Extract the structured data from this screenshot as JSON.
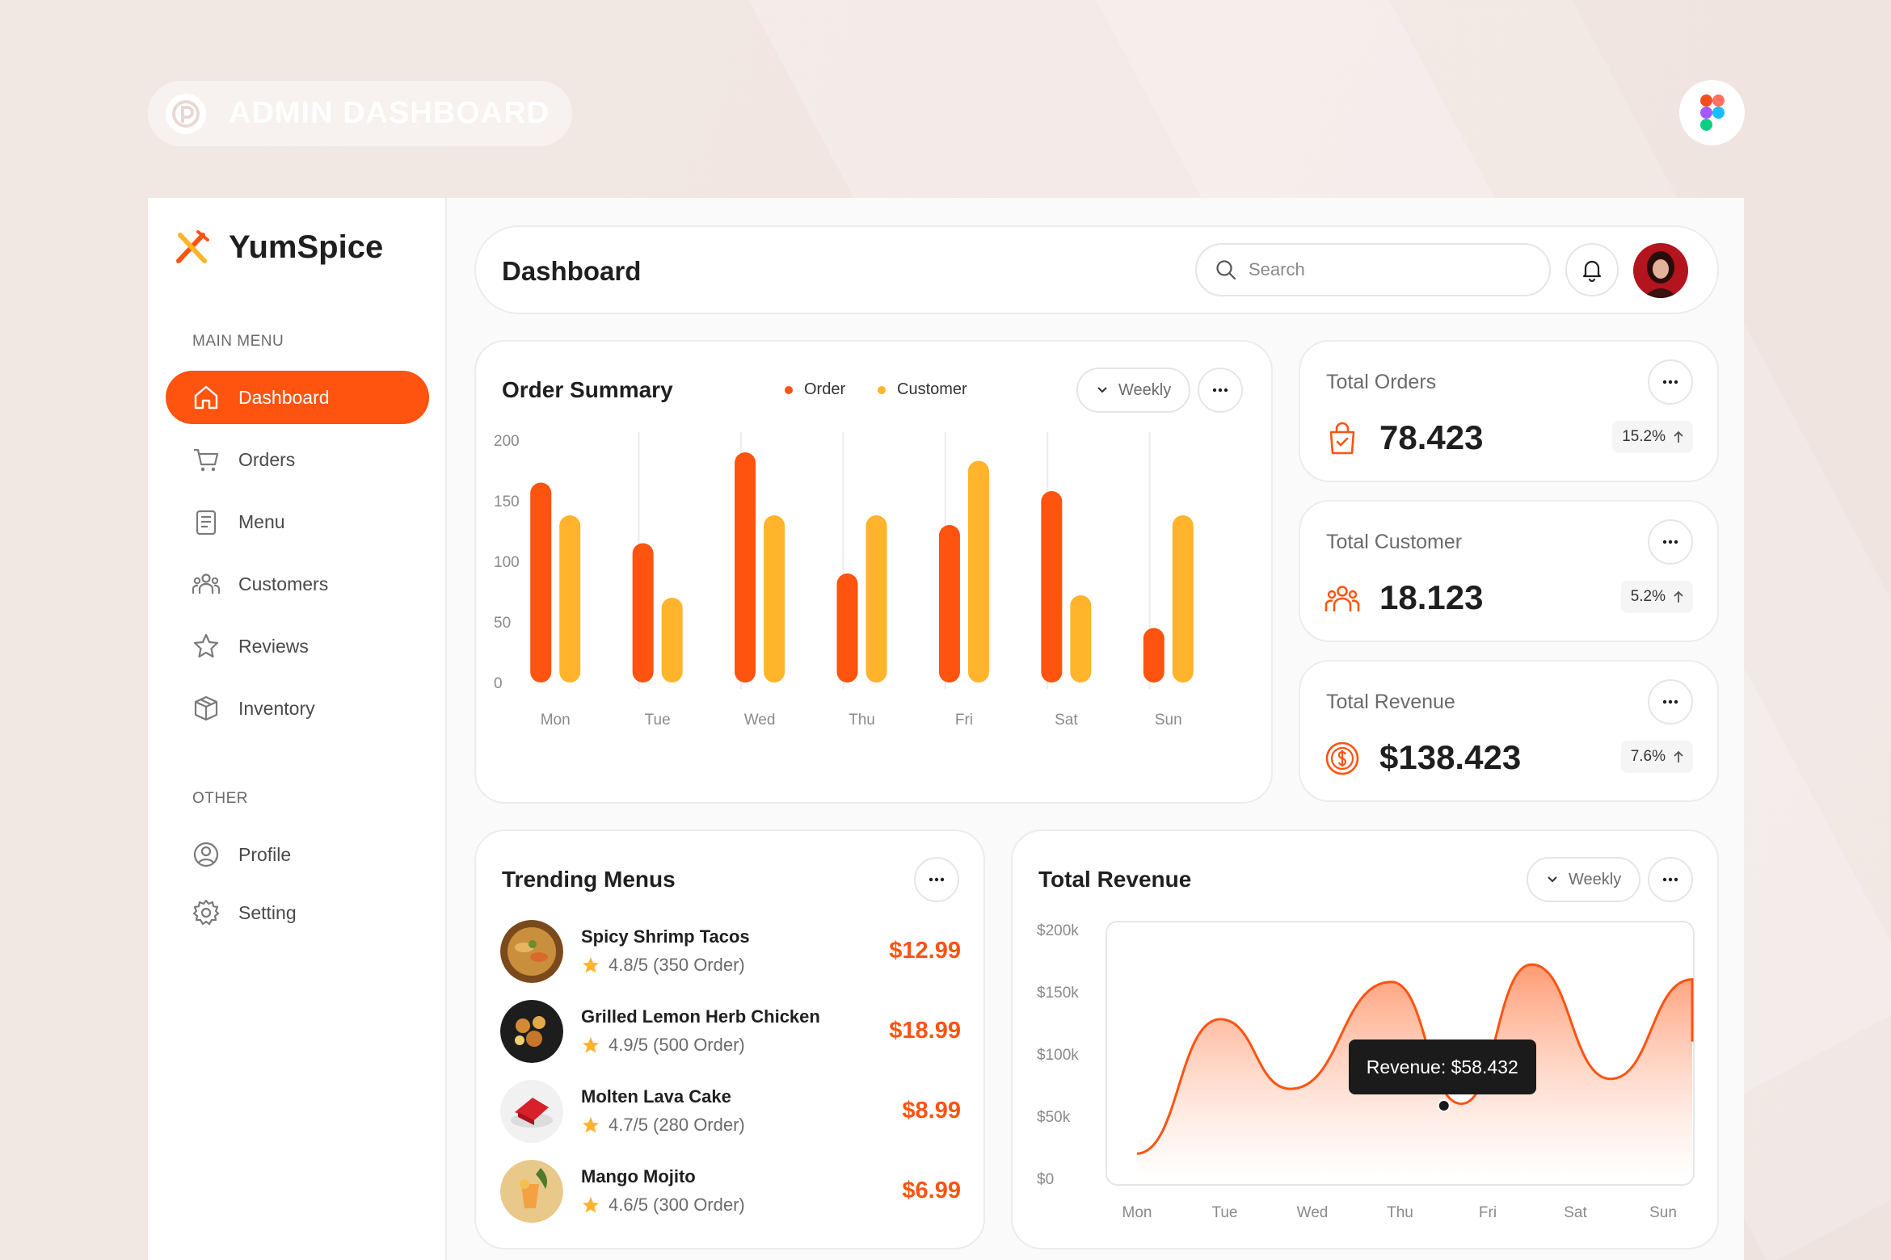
{
  "banner": {
    "title": "ADMIN DASHBOARD"
  },
  "brand": {
    "name": "YumSpice"
  },
  "sidebar": {
    "main_label": "MAIN MENU",
    "main_items": [
      {
        "label": "Dashboard",
        "icon": "home-icon",
        "active": true
      },
      {
        "label": "Orders",
        "icon": "cart-icon"
      },
      {
        "label": "Menu",
        "icon": "menu-board-icon"
      },
      {
        "label": "Customers",
        "icon": "customers-icon"
      },
      {
        "label": "Reviews",
        "icon": "star-icon"
      },
      {
        "label": "Inventory",
        "icon": "box-icon"
      }
    ],
    "other_label": "OTHER",
    "other_items": [
      {
        "label": "Profile",
        "icon": "profile-icon"
      },
      {
        "label": "Setting",
        "icon": "gear-icon"
      }
    ]
  },
  "header": {
    "title": "Dashboard",
    "search_placeholder": "Search"
  },
  "order_summary": {
    "title": "Order Summary",
    "legend": [
      "Order",
      "Customer"
    ],
    "period": "Weekly"
  },
  "stats": [
    {
      "title": "Total Orders",
      "value": "78.423",
      "change": "15.2%",
      "icon": "shopping-bag-icon"
    },
    {
      "title": "Total Customer",
      "value": "18.123",
      "change": "5.2%",
      "icon": "customers-icon"
    },
    {
      "title": "Total Revenue",
      "value": "$138.423",
      "change": "7.6%",
      "icon": "dollar-coin-icon"
    }
  ],
  "trending": {
    "title": "Trending Menus",
    "items": [
      {
        "name": "Spicy Shrimp Tacos",
        "rating": "4.8/5 (350 Order)",
        "price": "$12.99"
      },
      {
        "name": "Grilled Lemon Herb Chicken",
        "rating": "4.9/5 (500 Order)",
        "price": "$18.99"
      },
      {
        "name": "Molten Lava Cake",
        "rating": "4.7/5 (280 Order)",
        "price": "$8.99"
      },
      {
        "name": "Mango Mojito",
        "rating": "4.6/5 (300 Order)",
        "price": "$6.99"
      }
    ]
  },
  "revenue": {
    "title": "Total Revenue",
    "period": "Weekly",
    "tooltip": "Revenue: $58.432"
  },
  "colors": {
    "accent": "#ff5310",
    "secondary": "#ffb42b"
  },
  "chart_data": [
    {
      "type": "bar",
      "title": "Order Summary",
      "categories": [
        "Mon",
        "Tue",
        "Wed",
        "Thu",
        "Fri",
        "Sat",
        "Sun"
      ],
      "series": [
        {
          "name": "Order",
          "values": [
            165,
            115,
            190,
            90,
            130,
            158,
            45
          ],
          "color": "#ff5310"
        },
        {
          "name": "Customer",
          "values": [
            138,
            70,
            138,
            138,
            183,
            72,
            138
          ],
          "color": "#ffb42b"
        }
      ],
      "yticks": [
        "200",
        "150",
        "100",
        "50",
        "0"
      ],
      "ylim": [
        0,
        200
      ],
      "grid": true
    },
    {
      "type": "area",
      "title": "Total Revenue",
      "x": [
        "Mon",
        "Tue",
        "Wed",
        "Thu",
        "Fri",
        "Sat",
        "Sun"
      ],
      "points": [
        {
          "x": 0.0,
          "y": 20
        },
        {
          "x": 0.95,
          "y": 128
        },
        {
          "x": 1.75,
          "y": 72
        },
        {
          "x": 2.9,
          "y": 158
        },
        {
          "x": 3.7,
          "y": 60
        },
        {
          "x": 4.5,
          "y": 172
        },
        {
          "x": 5.4,
          "y": 80
        },
        {
          "x": 6.4,
          "y": 160
        },
        {
          "x": 7.0,
          "y": 110
        }
      ],
      "yticks": [
        "$200k",
        "$150k",
        "$100k",
        "$50k",
        "$0"
      ],
      "ylim": [
        0,
        200
      ],
      "highlight": {
        "x": 3.5,
        "y": 58.432
      }
    }
  ]
}
